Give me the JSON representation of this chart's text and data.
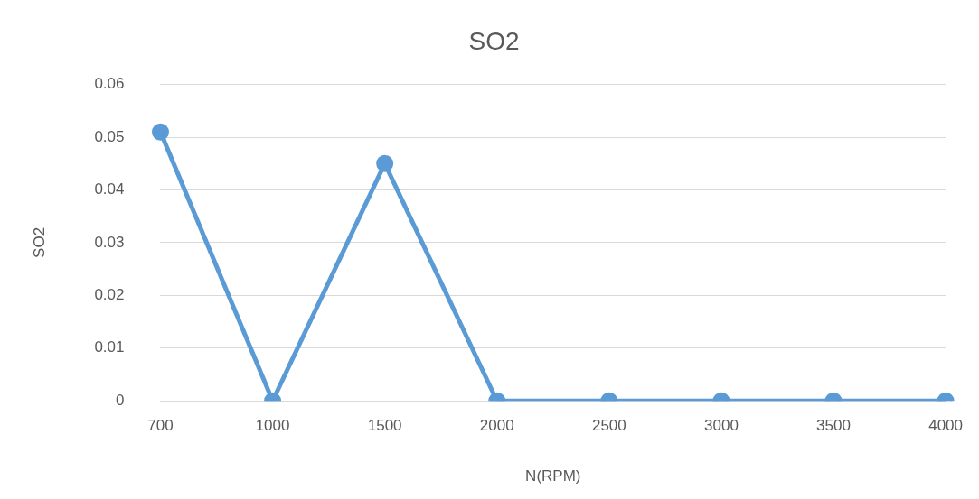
{
  "chart_data": {
    "type": "line",
    "title": "SO2",
    "xlabel": "N(RPM)",
    "ylabel": "SO2",
    "categories": [
      "700",
      "1000",
      "1500",
      "2000",
      "2500",
      "3000",
      "3500",
      "4000"
    ],
    "series": [
      {
        "color": "#5b9bd5",
        "values": [
          0.051,
          0,
          0.045,
          0,
          0,
          0,
          0,
          0
        ]
      }
    ],
    "ylim": [
      0,
      0.06
    ],
    "yticks": [
      0,
      0.01,
      0.02,
      0.03,
      0.04,
      0.05,
      0.06
    ],
    "grid": "y",
    "legend": false,
    "marker": "circle",
    "line_style": "solid"
  }
}
